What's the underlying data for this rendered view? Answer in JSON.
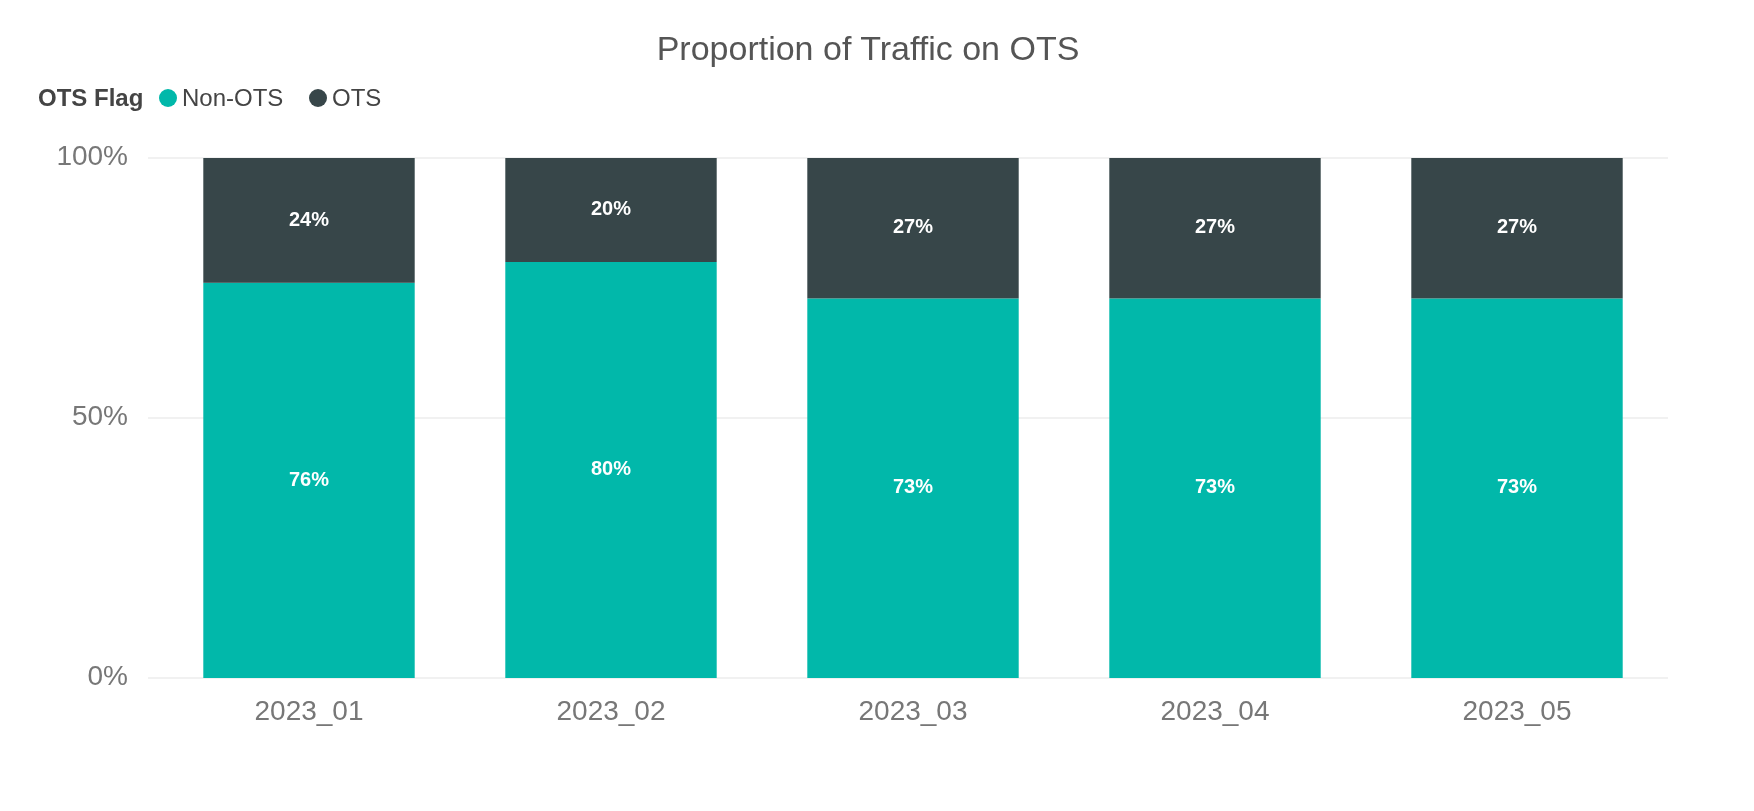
{
  "chart_data": {
    "type": "bar",
    "title": "Proportion of Traffic on OTS",
    "legend_title": "OTS Flag",
    "categories": [
      "2023_01",
      "2023_02",
      "2023_03",
      "2023_04",
      "2023_05"
    ],
    "stacked": true,
    "series": [
      {
        "name": "Non-OTS",
        "color": "#01b8aa",
        "values": [
          76,
          80,
          73,
          73,
          73
        ],
        "value_labels": [
          "76%",
          "80%",
          "73%",
          "73%",
          "73%"
        ]
      },
      {
        "name": "OTS",
        "color": "#374649",
        "values": [
          24,
          20,
          27,
          27,
          27
        ],
        "value_labels": [
          "24%",
          "20%",
          "27%",
          "27%",
          "27%"
        ]
      }
    ],
    "ylim": [
      0,
      100
    ],
    "yticks": [
      {
        "value": 0,
        "label": "0%"
      },
      {
        "value": 50,
        "label": "50%"
      },
      {
        "value": 100,
        "label": "100%"
      }
    ],
    "grid": "y",
    "legend": "top left"
  }
}
